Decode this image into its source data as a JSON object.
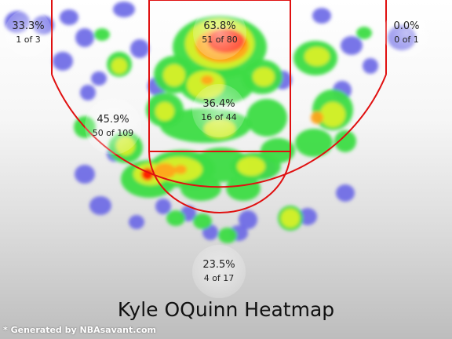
{
  "chart_data": {
    "type": "heatmap",
    "title": "Kyle OQuinn Heatmap",
    "zones": [
      {
        "id": "left-corner-three",
        "pct": "33.3%",
        "count": "1 of 3"
      },
      {
        "id": "right-corner-three",
        "pct": "0.0%",
        "count": "0 of 1"
      },
      {
        "id": "restricted-area",
        "pct": "63.8%",
        "count": "51 of 80"
      },
      {
        "id": "paint-non-ra",
        "pct": "36.4%",
        "count": "16 of 44"
      },
      {
        "id": "mid-range",
        "pct": "45.9%",
        "count": "50 of 109"
      },
      {
        "id": "above-break-three",
        "pct": "23.5%",
        "count": "4 of 17"
      }
    ],
    "heat_colors": {
      "low": "#6a66e6",
      "mid_low": "#3ddc44",
      "mid": "#d8f02a",
      "mid_high": "#ffa41c",
      "high": "#ff1800"
    }
  },
  "footer": {
    "credit": "* Generated by NBAsavant.com"
  }
}
